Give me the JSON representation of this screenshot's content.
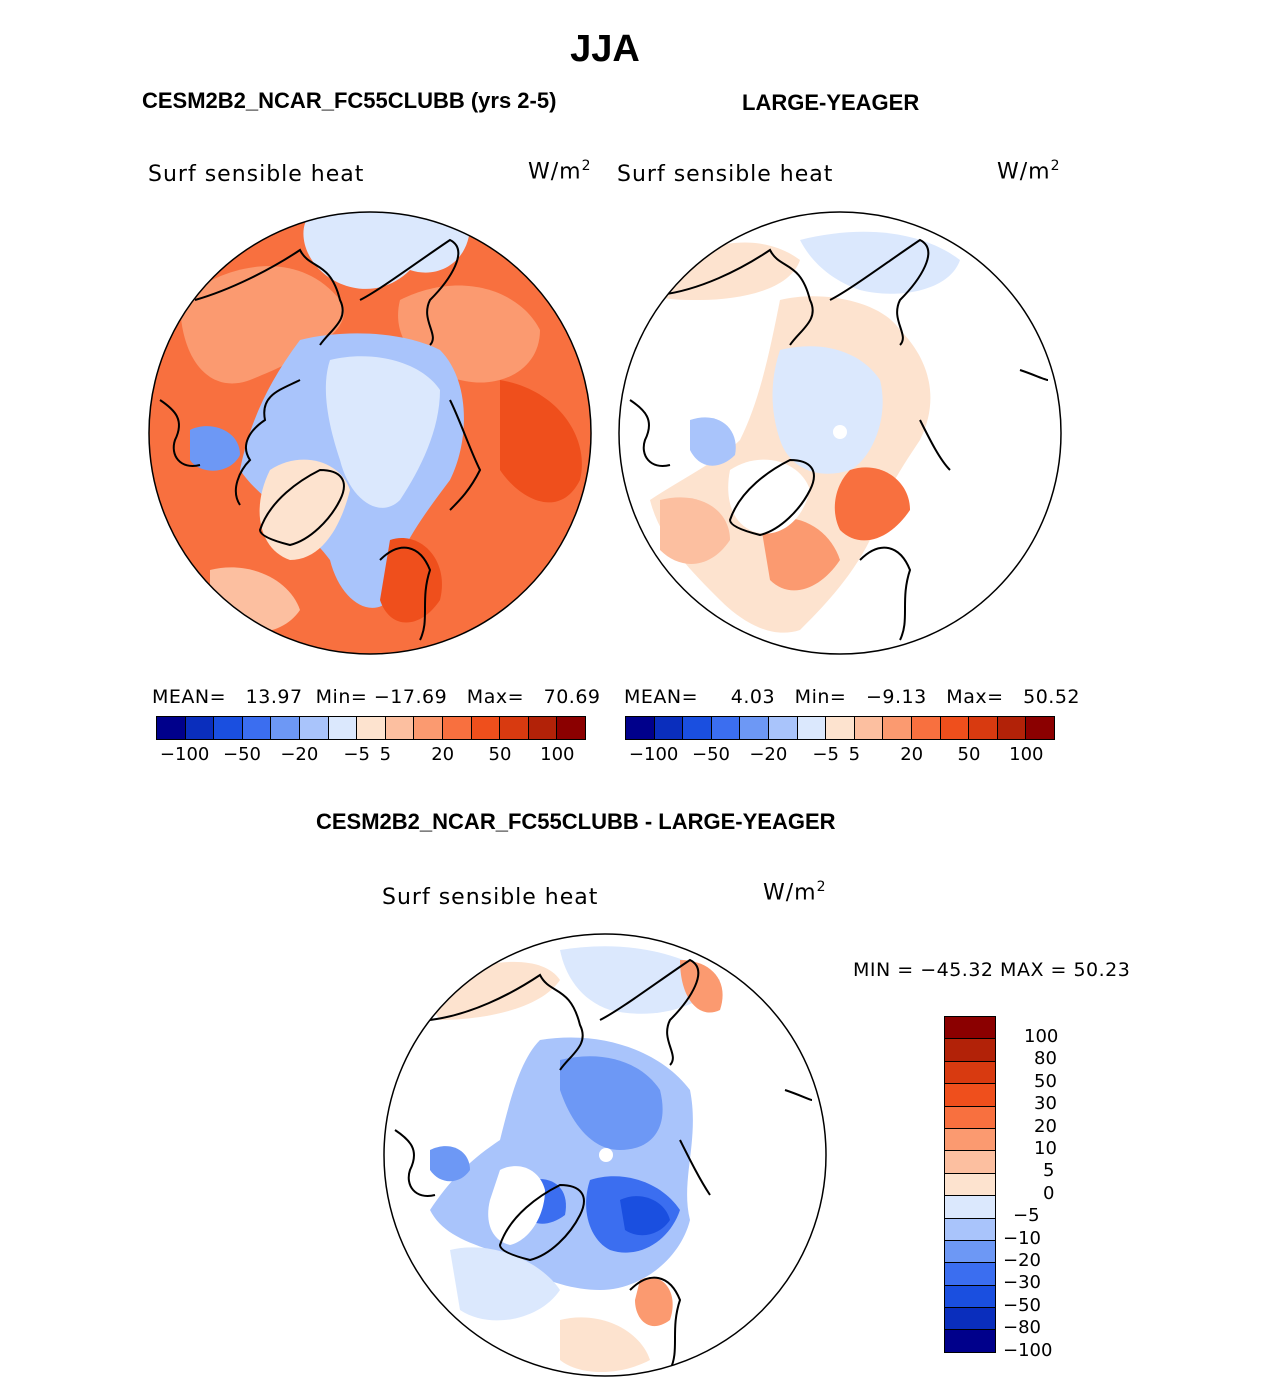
{
  "title": "JJA",
  "palette": [
    "#00008b",
    "#0a2ebd",
    "#1a4fe0",
    "#3b6ef0",
    "#6d98f5",
    "#a9c4fb",
    "#dbe8fd",
    "#fde3cf",
    "#fcbfa0",
    "#fb9a70",
    "#f8703f",
    "#ef4f1c",
    "#d83a10",
    "#b22208",
    "#8b0000"
  ],
  "panel_left": {
    "header": "CESM2B2_NCAR_FC55CLUBB (yrs 2-5)",
    "variable": "Surf sensible heat",
    "units_base": "W/m",
    "units_exp": "2",
    "stats": {
      "mean_label": "MEAN=",
      "mean": "13.97",
      "min_label": "Min=",
      "min": "−17.69",
      "max_label": "Max=",
      "max": "70.69"
    },
    "colorbar_ticks": [
      "−100",
      "−50",
      "−20",
      "−5",
      "5",
      "20",
      "50",
      "100"
    ]
  },
  "panel_right": {
    "header": "LARGE-YEAGER",
    "variable": "Surf sensible heat",
    "units_base": "W/m",
    "units_exp": "2",
    "stats": {
      "mean_label": "MEAN=",
      "mean": "4.03",
      "min_label": "Min=",
      "min": "−9.13",
      "max_label": "Max=",
      "max": "50.52"
    },
    "colorbar_ticks": [
      "−100",
      "−50",
      "−20",
      "−5",
      "5",
      "20",
      "50",
      "100"
    ]
  },
  "panel_diff": {
    "header": "CESM2B2_NCAR_FC55CLUBB - LARGE-YEAGER",
    "variable": "Surf sensible heat",
    "units_base": "W/m",
    "units_exp": "2",
    "minmax": "MIN = −45.32 MAX =  50.23",
    "colorbar_labels": [
      "100",
      "80",
      "50",
      "30",
      "20",
      "10",
      "5",
      "0",
      "−5",
      "−10",
      "−20",
      "−30",
      "−50",
      "−80",
      "−100"
    ]
  }
}
